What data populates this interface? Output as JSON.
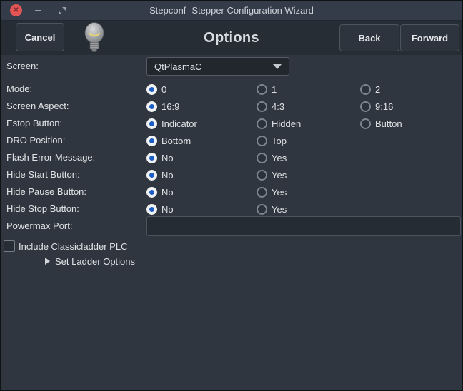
{
  "window": {
    "title": "Stepconf -Stepper Configuration Wizard",
    "close_glyph": "✕"
  },
  "header": {
    "cancel_label": "Cancel",
    "title": "Options",
    "back_label": "Back",
    "forward_label": "Forward"
  },
  "form": {
    "screen": {
      "label": "Screen:",
      "value": "QtPlasmaC"
    },
    "radio_rows": [
      {
        "label": "Mode:",
        "options": [
          "0",
          "1",
          "2"
        ],
        "selected": 0
      },
      {
        "label": "Screen Aspect:",
        "options": [
          "16:9",
          "4:3",
          "9:16"
        ],
        "selected": 0
      },
      {
        "label": "Estop Button:",
        "options": [
          "Indicator",
          "Hidden",
          "Button"
        ],
        "selected": 0
      },
      {
        "label": "DRO Position:",
        "options": [
          "Bottom",
          "Top"
        ],
        "selected": 0
      },
      {
        "label": "Flash Error Message:",
        "options": [
          "No",
          "Yes"
        ],
        "selected": 0
      },
      {
        "label": "Hide Start Button:",
        "options": [
          "No",
          "Yes"
        ],
        "selected": 0
      },
      {
        "label": "Hide Pause Button:",
        "options": [
          "No",
          "Yes"
        ],
        "selected": 0
      },
      {
        "label": "Hide Stop Button:",
        "options": [
          "No",
          "Yes"
        ],
        "selected": 0
      }
    ],
    "powermax": {
      "label": "Powermax Port:",
      "value": ""
    },
    "classicladder": {
      "label": "Include Classicladder PLC",
      "checked": false
    },
    "ladder_options": {
      "label": "Set Ladder Options"
    }
  },
  "colors": {
    "accent_radio_blue": "#1d5ec6",
    "close_button_red": "#e35555",
    "window_background": "#2f363f",
    "titlebar_background": "#353c49",
    "header_background": "#272d35"
  }
}
